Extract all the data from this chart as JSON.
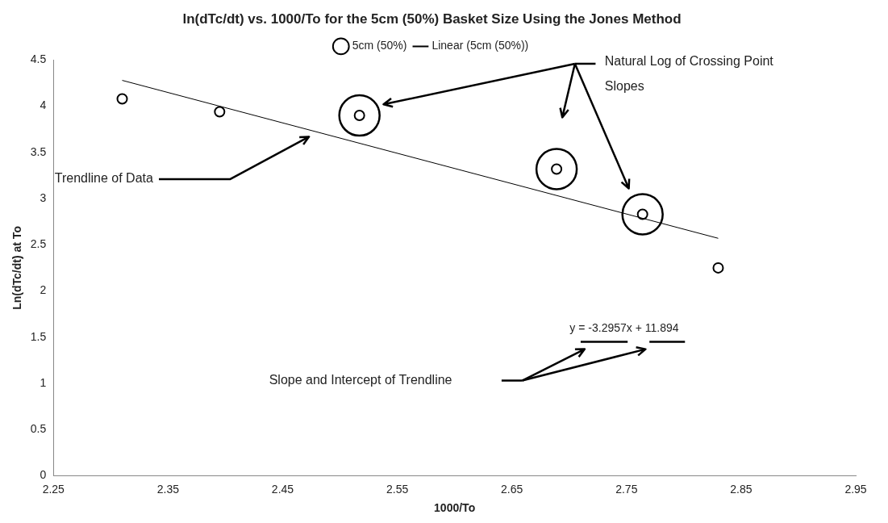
{
  "chart_data": {
    "type": "scatter",
    "title": "ln(dTc/dt) vs. 1000/To for the 5cm (50%) Basket Size Using the Jones Method",
    "xlabel": "1000/To",
    "ylabel": "Ln(dTc/dt) at To",
    "series": [
      {
        "name": "5cm (50%)",
        "color": "#000000",
        "marker": "circle",
        "x": [
          2.31,
          2.395,
          2.517,
          2.689,
          2.764,
          2.83
        ],
        "values": [
          4.08,
          3.94,
          3.9,
          3.32,
          2.83,
          2.25
        ]
      },
      {
        "name": "Linear (5cm (50%))",
        "type": "line",
        "color": "#000000",
        "marker": "none",
        "x": [
          2.31,
          2.83
        ],
        "values": [
          4.28,
          2.57
        ]
      }
    ],
    "xlim": [
      2.25,
      2.95
    ],
    "xticks": [
      2.25,
      2.35,
      2.45,
      2.55,
      2.65,
      2.75,
      2.85,
      2.95
    ],
    "ylim": [
      0,
      4.5
    ],
    "yticks": [
      0,
      0.5,
      1,
      1.5,
      2,
      2.5,
      3,
      3.5,
      4,
      4.5
    ],
    "grid": false,
    "legend": "top",
    "annotations": [
      "Trendline of Data",
      "Natural Log of Crossing Point Slopes",
      "y = -3.2957x + 11.894",
      "Slope and Intercept of Trendline"
    ]
  }
}
